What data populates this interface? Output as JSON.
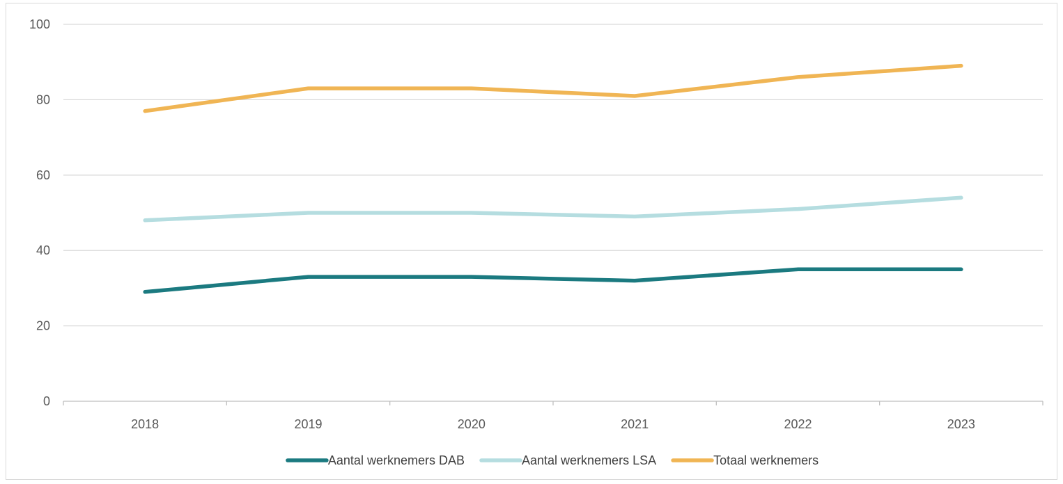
{
  "chart_data": {
    "type": "line",
    "title": "",
    "xlabel": "",
    "ylabel": "",
    "x": [
      "2018",
      "2019",
      "2020",
      "2021",
      "2022",
      "2023"
    ],
    "ylim": [
      0,
      100
    ],
    "yticks": [
      0,
      20,
      40,
      60,
      80,
      100
    ],
    "grid": true,
    "legend_position": "bottom",
    "series": [
      {
        "name": "Aantal werknemers DAB",
        "color": "#1b7a80",
        "values": [
          29,
          33,
          33,
          32,
          35,
          35
        ]
      },
      {
        "name": "Aantal werknemers LSA",
        "color": "#b5dde0",
        "values": [
          48,
          50,
          50,
          49,
          51,
          54
        ]
      },
      {
        "name": "Totaal werknemers",
        "color": "#f0b554",
        "values": [
          77,
          83,
          83,
          81,
          86,
          89
        ]
      }
    ]
  }
}
